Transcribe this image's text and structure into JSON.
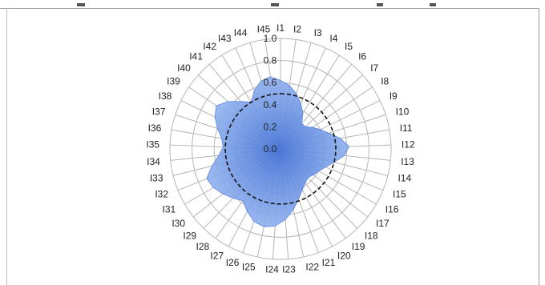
{
  "chart_data": {
    "type": "radar",
    "title": "",
    "categories": [
      "I1",
      "I2",
      "I3",
      "I4",
      "I5",
      "I6",
      "I7",
      "I8",
      "I9",
      "I10",
      "I11",
      "I12",
      "I13",
      "I14",
      "I15",
      "I16",
      "I17",
      "I18",
      "I19",
      "I20",
      "I21",
      "I22",
      "I23",
      "I24",
      "I25",
      "I26",
      "I27",
      "I28",
      "I29",
      "I30",
      "I31",
      "I32",
      "I33",
      "I34",
      "I35",
      "I36",
      "I37",
      "I38",
      "I39",
      "I40",
      "I41",
      "I42",
      "I43",
      "I44",
      "I45"
    ],
    "radial_ticks": [
      "0.0",
      "0.2",
      "0.4",
      "0.6",
      "0.8",
      "1.0"
    ],
    "rlim": [
      0,
      1.0
    ],
    "series": [
      {
        "values": [
          0.62,
          0.58,
          0.52,
          0.45,
          0.38,
          0.3,
          0.3,
          0.35,
          0.4,
          0.46,
          0.55,
          0.62,
          0.58,
          0.5,
          0.44,
          0.4,
          0.38,
          0.36,
          0.38,
          0.42,
          0.48,
          0.56,
          0.64,
          0.7,
          0.72,
          0.7,
          0.64,
          0.58,
          0.62,
          0.66,
          0.7,
          0.72,
          0.64,
          0.56,
          0.52,
          0.54,
          0.6,
          0.66,
          0.7,
          0.64,
          0.56,
          0.5,
          0.58,
          0.64,
          0.66
        ],
        "color": "#5b84e0"
      },
      {
        "values": [
          0.5,
          0.5,
          0.5,
          0.5,
          0.5,
          0.5,
          0.5,
          0.5,
          0.5,
          0.5,
          0.5,
          0.5,
          0.5,
          0.5,
          0.5,
          0.5,
          0.5,
          0.5,
          0.5,
          0.5,
          0.5,
          0.5,
          0.5,
          0.5,
          0.5,
          0.5,
          0.5,
          0.5,
          0.5,
          0.5,
          0.5,
          0.5,
          0.5,
          0.5,
          0.5,
          0.5,
          0.5,
          0.5,
          0.5,
          0.5,
          0.5,
          0.5,
          0.5,
          0.5,
          0.5
        ],
        "color": "#111111",
        "style": "dashed"
      }
    ],
    "grid": true
  }
}
